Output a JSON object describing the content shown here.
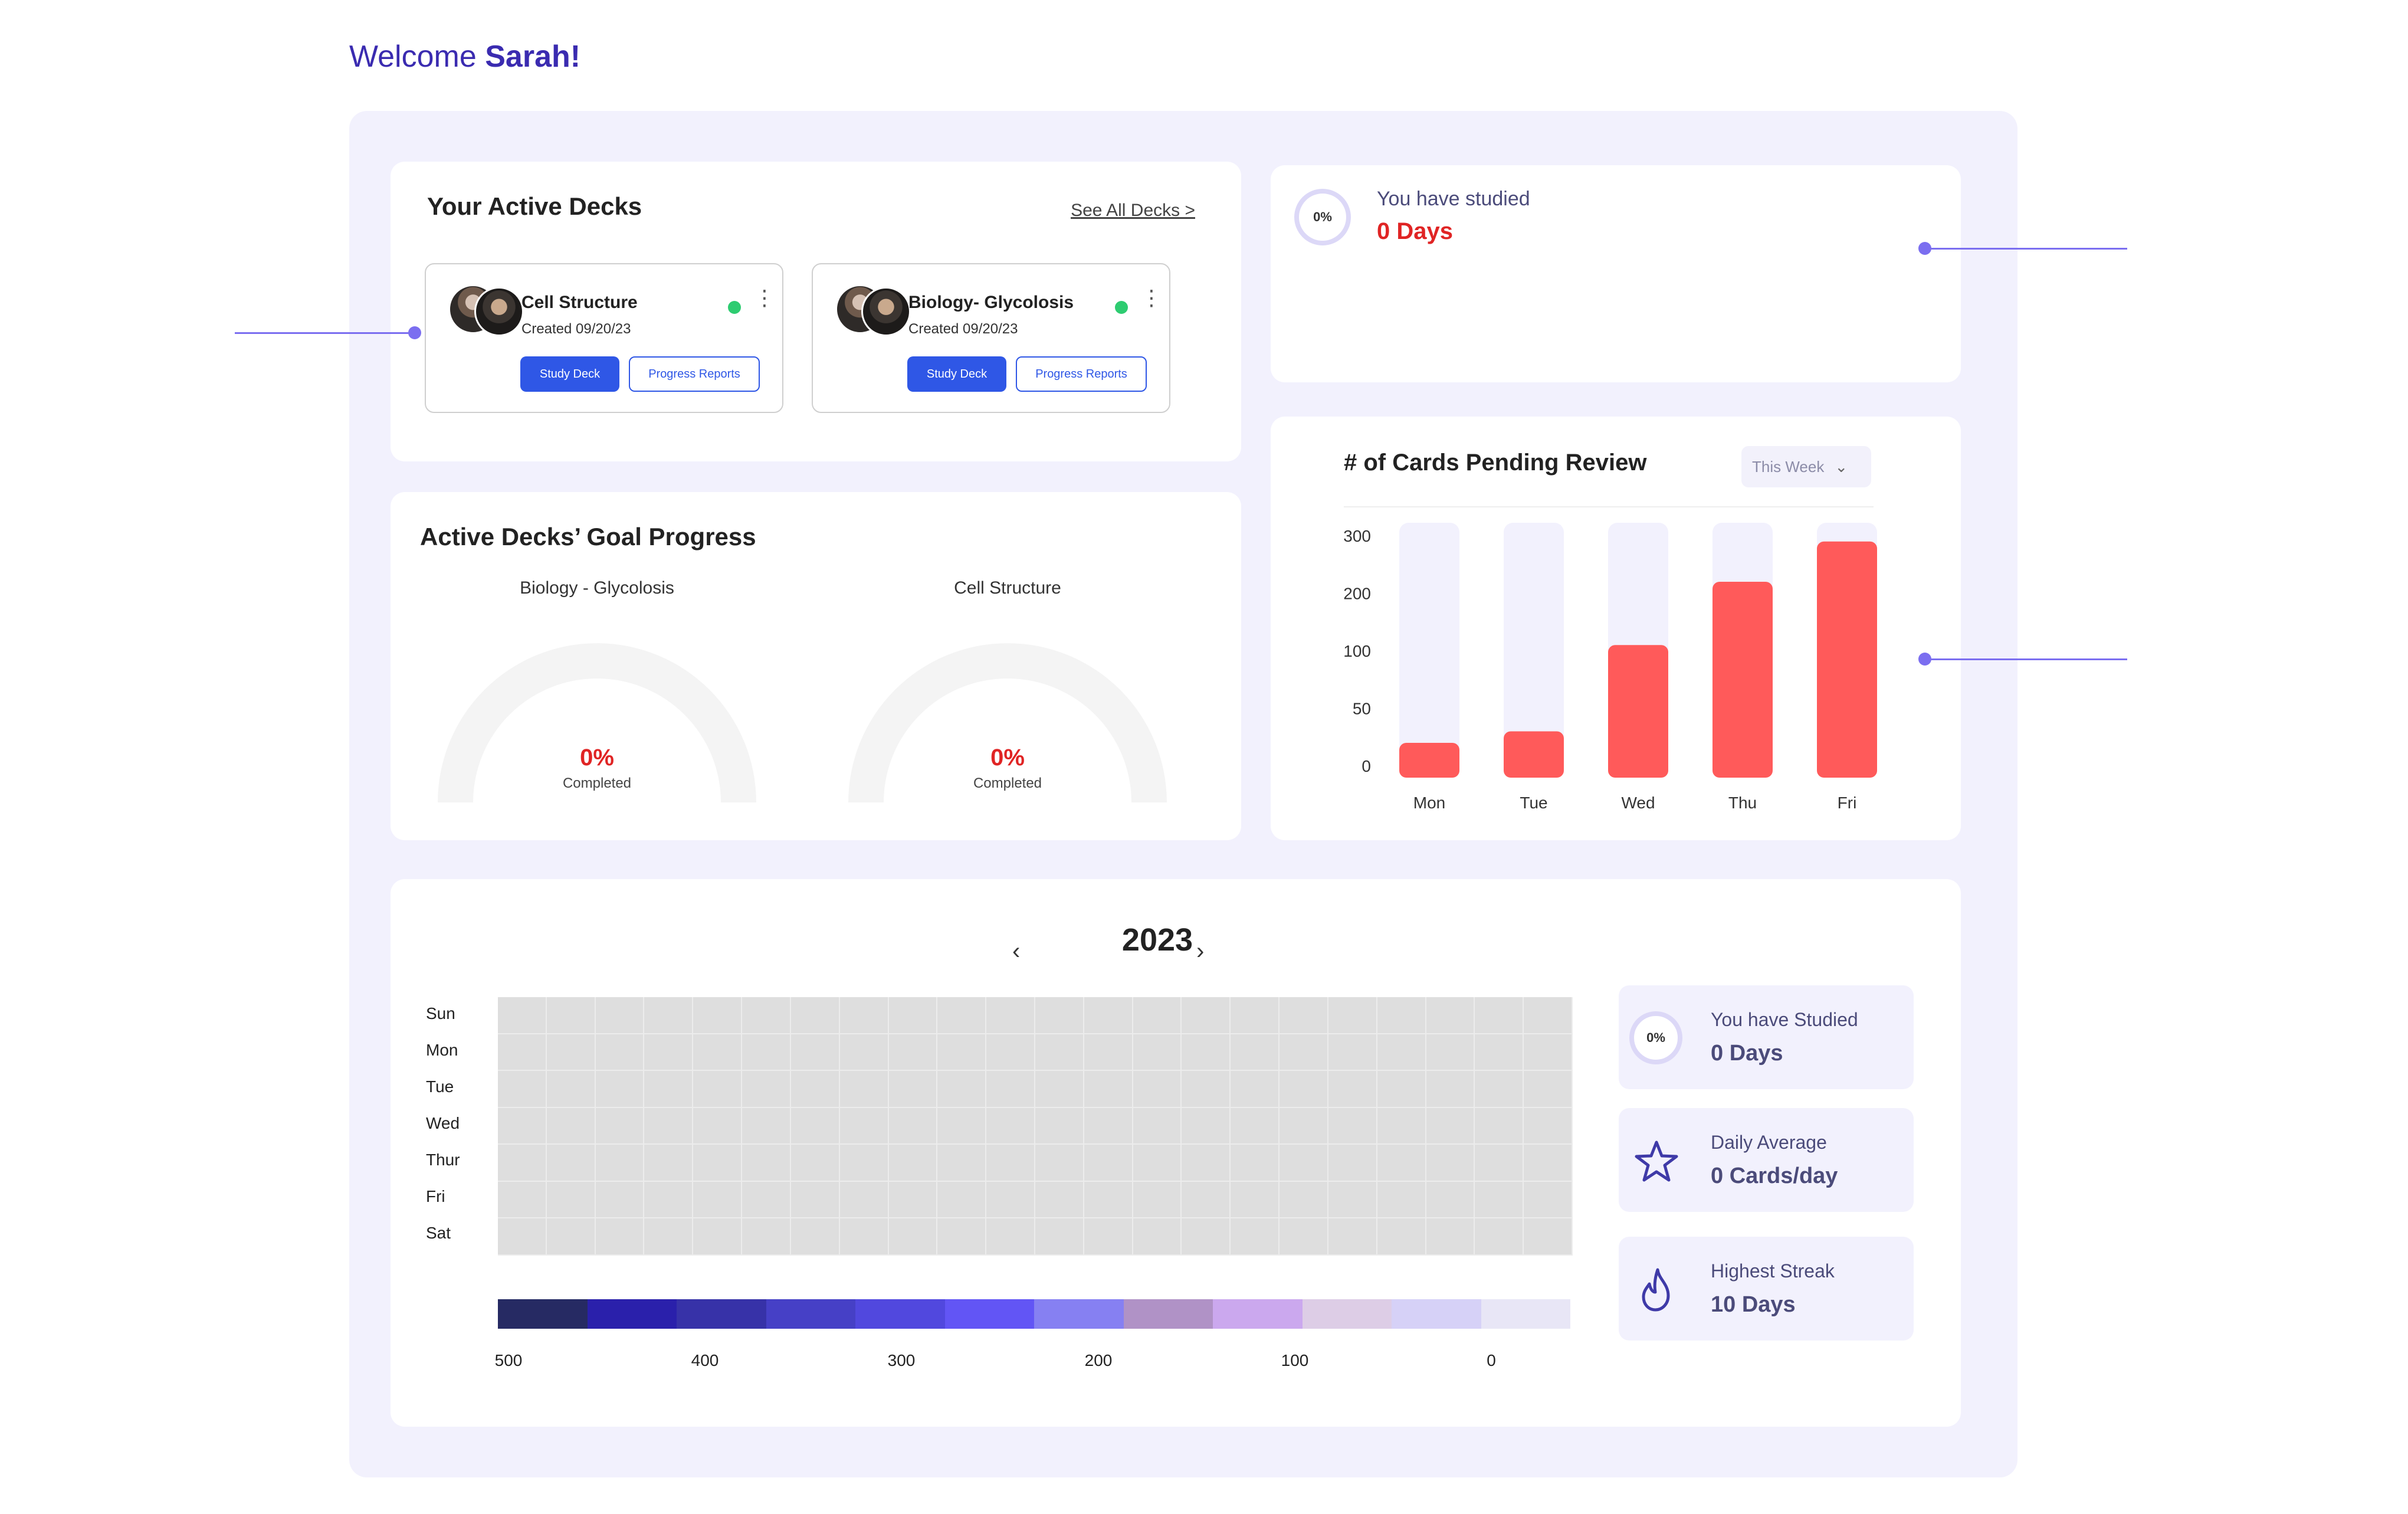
{
  "welcome": {
    "prefix": "Welcome",
    "name": "Sarah!"
  },
  "active_decks": {
    "title": "Your Active Decks",
    "see_all": "See All Decks >",
    "decks": [
      {
        "name": "Cell Structure",
        "created": "Created 09/20/23",
        "study_label": "Study Deck",
        "progress_label": "Progress Reports"
      },
      {
        "name": "Biology- Glycolosis",
        "created": "Created 09/20/23",
        "study_label": "Study Deck",
        "progress_label": "Progress Reports"
      }
    ]
  },
  "goal_progress": {
    "title": "Active Decks’ Goal Progress",
    "gauges": [
      {
        "label": "Biology - Glycolosis",
        "percent": "0%",
        "status": "Completed"
      },
      {
        "label": "Cell Structure",
        "percent": "0%",
        "status": "Completed"
      }
    ]
  },
  "studied_summary": {
    "ring": "0%",
    "line1": "You have studied",
    "line2": "0 Days"
  },
  "cards_pending": {
    "title": "# of Cards Pending Review",
    "filter": "This Week"
  },
  "chart_data": {
    "type": "bar",
    "title": "# of Cards Pending Review",
    "categories": [
      "Mon",
      "Tue",
      "Wed",
      "Thu",
      "Fri"
    ],
    "values": [
      20,
      30,
      110,
      220,
      290
    ],
    "yticks": [
      "300",
      "200",
      "100",
      "50",
      "0"
    ],
    "grid": false,
    "colors": {
      "bar": "#ff5a5a",
      "track": "#f2f1fd"
    }
  },
  "heatmap": {
    "year": "2023",
    "prev_icon": "‹",
    "next_icon": "›",
    "days": [
      "Sun",
      "Mon",
      "Tue",
      "Wed",
      "Thur",
      "Fri",
      "Sat"
    ],
    "legend_colors": [
      "#262a63",
      "#2a20ab",
      "#3732a8",
      "#4640c6",
      "#5148de",
      "#6255f5",
      "#8680f2",
      "#b092c6",
      "#cba8ee",
      "#ddcde6",
      "#d6d1f7",
      "#e8e6f6"
    ],
    "legend_labels": [
      "500",
      "400",
      "300",
      "200",
      "100",
      "0"
    ]
  },
  "stats": {
    "studied": {
      "ring": "0%",
      "label": "You have Studied",
      "value": "0 Days"
    },
    "daily": {
      "icon": "star-icon",
      "label": "Daily Average",
      "value": "0 Cards/day"
    },
    "streak": {
      "icon": "flame-icon",
      "label": "Highest Streak",
      "value": "10 Days"
    }
  }
}
